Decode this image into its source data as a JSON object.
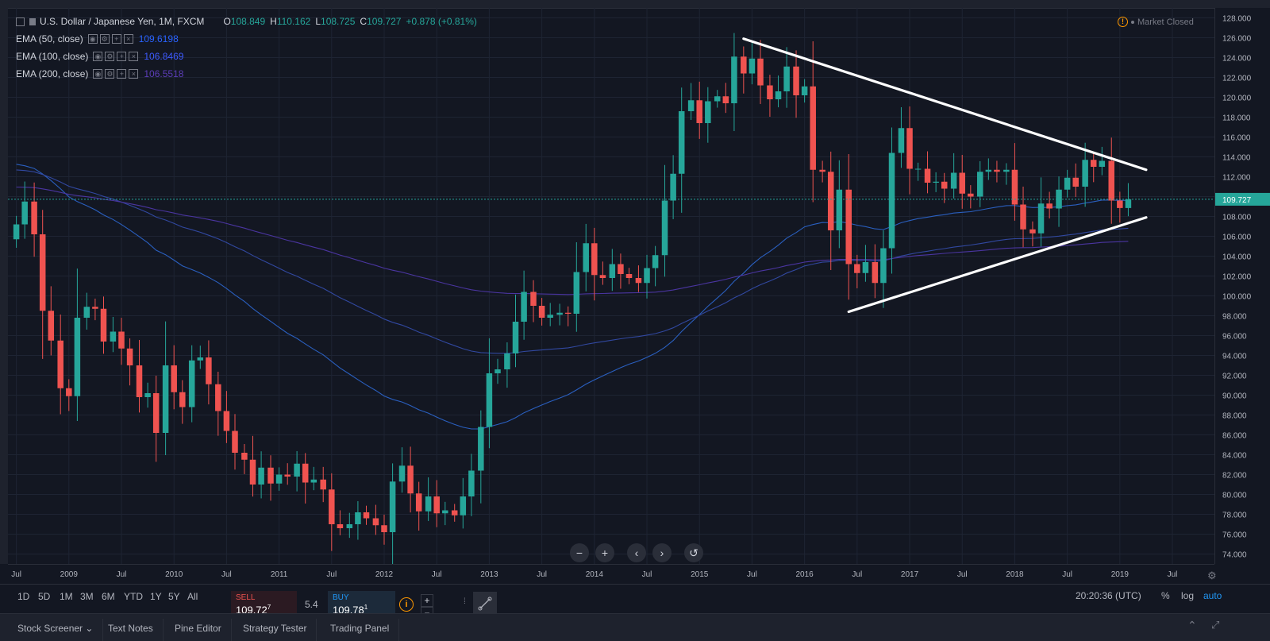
{
  "symbol": {
    "title": "U.S. Dollar / Japanese Yen, 1M, FXCM",
    "ohlc": {
      "o_label": "O",
      "o": "108.849",
      "h_label": "H",
      "h": "110.162",
      "l_label": "L",
      "l": "108.725",
      "c_label": "C",
      "c": "109.727",
      "change": "+0.878 (+0.81%)"
    },
    "market_status": "Market Closed"
  },
  "indicators": [
    {
      "name": "EMA (50, close)",
      "value": "109.6198",
      "color": "#2962ff"
    },
    {
      "name": "EMA (100, close)",
      "value": "106.8469",
      "color": "#3d5afe"
    },
    {
      "name": "EMA (200, close)",
      "value": "106.5518",
      "color": "#5c3db8"
    }
  ],
  "colors": {
    "up": "#26a69a",
    "down": "#ef5350",
    "background": "#131722",
    "grid": "#1e2433",
    "trendline": "#ffffff",
    "ema50": "#2a5fbf",
    "ema100": "#3148a0",
    "ema200": "#4a35a0"
  },
  "chart_data": {
    "type": "candlestick",
    "interval": "1M",
    "y_range": [
      73,
      129
    ],
    "y_ticks": [
      "128.000",
      "126.000",
      "124.000",
      "122.000",
      "120.000",
      "118.000",
      "116.000",
      "114.000",
      "112.000",
      "110.000",
      "108.000",
      "106.000",
      "104.000",
      "102.000",
      "100.000",
      "98.000",
      "96.000",
      "94.000",
      "92.000",
      "90.000",
      "88.000",
      "86.000",
      "84.000",
      "82.000",
      "80.000",
      "78.000",
      "76.000",
      "74.000"
    ],
    "x_ticks": [
      {
        "label": "Jul",
        "t": 2008.5
      },
      {
        "label": "2009",
        "t": 2009.0
      },
      {
        "label": "Jul",
        "t": 2009.5
      },
      {
        "label": "2010",
        "t": 2010.0
      },
      {
        "label": "Jul",
        "t": 2010.5
      },
      {
        "label": "2011",
        "t": 2011.0
      },
      {
        "label": "Jul",
        "t": 2011.5
      },
      {
        "label": "2012",
        "t": 2012.0
      },
      {
        "label": "Jul",
        "t": 2012.5
      },
      {
        "label": "2013",
        "t": 2013.0
      },
      {
        "label": "Jul",
        "t": 2013.5
      },
      {
        "label": "2014",
        "t": 2014.0
      },
      {
        "label": "Jul",
        "t": 2014.5
      },
      {
        "label": "2015",
        "t": 2015.0
      },
      {
        "label": "Jul",
        "t": 2015.5
      },
      {
        "label": "2016",
        "t": 2016.0
      },
      {
        "label": "Jul",
        "t": 2016.5
      },
      {
        "label": "2017",
        "t": 2017.0
      },
      {
        "label": "Jul",
        "t": 2017.5
      },
      {
        "label": "2018",
        "t": 2018.0
      },
      {
        "label": "Jul",
        "t": 2018.5
      },
      {
        "label": "2019",
        "t": 2019.0
      },
      {
        "label": "Jul",
        "t": 2019.5
      }
    ],
    "x_range": [
      2008.42,
      2019.9
    ],
    "current_price": "109.727",
    "price_line": 109.727,
    "anchors": [
      [
        2008.5,
        107.2
      ],
      [
        2008.58,
        109.5
      ],
      [
        2008.67,
        106.2
      ],
      [
        2008.75,
        98.5
      ],
      [
        2008.83,
        95.5
      ],
      [
        2008.92,
        90.7
      ],
      [
        2009.0,
        89.9
      ],
      [
        2009.08,
        97.8
      ],
      [
        2009.17,
        98.9
      ],
      [
        2009.25,
        98.7
      ],
      [
        2009.33,
        95.4
      ],
      [
        2009.42,
        96.4
      ],
      [
        2009.5,
        94.7
      ],
      [
        2009.58,
        93.0
      ],
      [
        2009.67,
        89.8
      ],
      [
        2009.75,
        90.2
      ],
      [
        2009.83,
        86.2
      ],
      [
        2009.92,
        93.0
      ],
      [
        2010.0,
        90.3
      ],
      [
        2010.08,
        88.8
      ],
      [
        2010.17,
        93.5
      ],
      [
        2010.25,
        93.8
      ],
      [
        2010.33,
        91.1
      ],
      [
        2010.42,
        88.4
      ],
      [
        2010.5,
        86.4
      ],
      [
        2010.58,
        84.2
      ],
      [
        2010.67,
        83.5
      ],
      [
        2010.75,
        81.0
      ],
      [
        2010.83,
        82.7
      ],
      [
        2010.92,
        81.1
      ],
      [
        2011.0,
        82.0
      ],
      [
        2011.08,
        81.8
      ],
      [
        2011.17,
        83.1
      ],
      [
        2011.25,
        81.2
      ],
      [
        2011.33,
        81.5
      ],
      [
        2011.42,
        80.5
      ],
      [
        2011.5,
        77.0
      ],
      [
        2011.58,
        76.6
      ],
      [
        2011.67,
        77.0
      ],
      [
        2011.75,
        78.2
      ],
      [
        2011.83,
        77.6
      ],
      [
        2011.92,
        76.9
      ],
      [
        2012.0,
        76.2
      ],
      [
        2012.08,
        81.3
      ],
      [
        2012.17,
        82.9
      ],
      [
        2012.25,
        80.1
      ],
      [
        2012.33,
        78.3
      ],
      [
        2012.42,
        79.8
      ],
      [
        2012.5,
        78.1
      ],
      [
        2012.58,
        78.4
      ],
      [
        2012.67,
        77.9
      ],
      [
        2012.75,
        79.8
      ],
      [
        2012.83,
        82.4
      ],
      [
        2012.92,
        86.8
      ],
      [
        2013.0,
        92.2
      ],
      [
        2013.08,
        92.6
      ],
      [
        2013.17,
        94.2
      ],
      [
        2013.25,
        97.4
      ],
      [
        2013.33,
        100.4
      ],
      [
        2013.42,
        99.0
      ],
      [
        2013.5,
        97.8
      ],
      [
        2013.58,
        98.1
      ],
      [
        2013.67,
        98.3
      ],
      [
        2013.75,
        98.2
      ],
      [
        2013.83,
        102.4
      ],
      [
        2013.92,
        105.3
      ],
      [
        2014.0,
        102.1
      ],
      [
        2014.08,
        101.8
      ],
      [
        2014.17,
        103.2
      ],
      [
        2014.25,
        102.2
      ],
      [
        2014.33,
        101.8
      ],
      [
        2014.42,
        101.3
      ],
      [
        2014.5,
        102.8
      ],
      [
        2014.58,
        104.1
      ],
      [
        2014.67,
        109.6
      ],
      [
        2014.75,
        112.3
      ],
      [
        2014.83,
        118.6
      ],
      [
        2014.92,
        119.7
      ],
      [
        2015.0,
        117.4
      ],
      [
        2015.08,
        119.6
      ],
      [
        2015.17,
        120.1
      ],
      [
        2015.25,
        119.4
      ],
      [
        2015.33,
        124.1
      ],
      [
        2015.42,
        122.4
      ],
      [
        2015.5,
        123.9
      ],
      [
        2015.58,
        121.2
      ],
      [
        2015.67,
        119.8
      ],
      [
        2015.75,
        120.6
      ],
      [
        2015.83,
        123.1
      ],
      [
        2015.92,
        120.2
      ],
      [
        2016.0,
        121.1
      ],
      [
        2016.08,
        112.7
      ],
      [
        2016.17,
        112.5
      ],
      [
        2016.25,
        106.6
      ],
      [
        2016.33,
        110.7
      ],
      [
        2016.42,
        103.2
      ],
      [
        2016.5,
        102.3
      ],
      [
        2016.58,
        103.4
      ],
      [
        2016.67,
        101.3
      ],
      [
        2016.75,
        104.8
      ],
      [
        2016.83,
        114.4
      ],
      [
        2016.92,
        116.9
      ],
      [
        2017.0,
        112.8
      ],
      [
        2017.08,
        112.8
      ],
      [
        2017.17,
        111.4
      ],
      [
        2017.25,
        111.5
      ],
      [
        2017.33,
        110.8
      ],
      [
        2017.42,
        112.4
      ],
      [
        2017.5,
        110.3
      ],
      [
        2017.58,
        110.0
      ],
      [
        2017.67,
        112.5
      ],
      [
        2017.75,
        112.7
      ],
      [
        2017.83,
        112.5
      ],
      [
        2017.92,
        112.7
      ],
      [
        2018.0,
        109.2
      ],
      [
        2018.08,
        106.7
      ],
      [
        2018.17,
        106.3
      ],
      [
        2018.25,
        109.3
      ],
      [
        2018.33,
        108.8
      ],
      [
        2018.42,
        110.7
      ],
      [
        2018.5,
        111.9
      ],
      [
        2018.58,
        111.0
      ],
      [
        2018.67,
        113.7
      ],
      [
        2018.75,
        113.0
      ],
      [
        2018.83,
        113.6
      ],
      [
        2018.92,
        109.6
      ],
      [
        2019.0,
        108.849
      ],
      [
        2019.08,
        109.727
      ]
    ],
    "trendlines": [
      {
        "name": "upper",
        "from": [
          2015.42,
          125.9
        ],
        "to": [
          2019.25,
          112.7
        ]
      },
      {
        "name": "lower",
        "from": [
          2016.42,
          98.4
        ],
        "to": [
          2019.25,
          107.9
        ]
      }
    ]
  },
  "nav": {
    "zoom_out": "−",
    "zoom_in": "+",
    "back": "‹",
    "forward": "›",
    "reset": "↺"
  },
  "toolbar": {
    "ranges": [
      "1D",
      "5D",
      "1M",
      "3M",
      "6M",
      "YTD",
      "1Y",
      "5Y",
      "All"
    ],
    "sell_label": "SELL",
    "sell_price": "109.72",
    "sell_sup": "7",
    "spread": "5.4",
    "buy_label": "BUY",
    "buy_price": "109.78",
    "buy_sup": "1",
    "clock": "20:20:36 (UTC)",
    "pct": "%",
    "log": "log",
    "auto": "auto"
  },
  "tabs": [
    "Stock Screener",
    "Text Notes",
    "Pine Editor",
    "Strategy Tester",
    "Trading Panel"
  ]
}
